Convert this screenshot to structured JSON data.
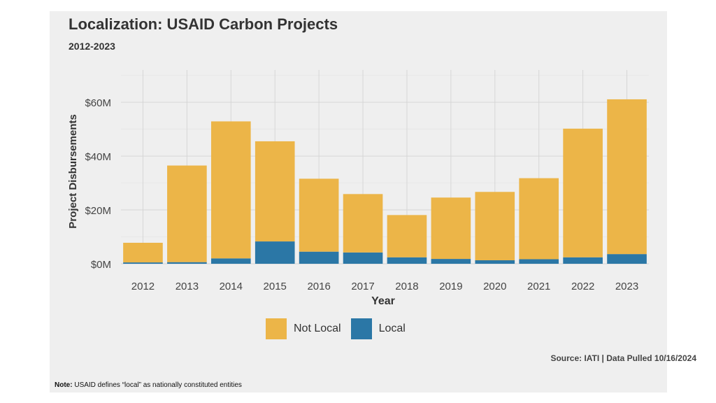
{
  "chart_data": {
    "type": "bar",
    "stacked": true,
    "title": "Localization: USAID Carbon Projects",
    "subtitle": "2012-2023",
    "xlabel": "Year",
    "ylabel": "Project Disbursements",
    "categories": [
      "2012",
      "2013",
      "2014",
      "2015",
      "2016",
      "2017",
      "2018",
      "2019",
      "2020",
      "2021",
      "2022",
      "2023"
    ],
    "series": [
      {
        "name": "Local",
        "color": "#2b77a6",
        "values": [
          0.5,
          0.6,
          2.0,
          8.3,
          4.5,
          4.2,
          2.4,
          1.8,
          1.3,
          1.7,
          2.4,
          3.6
        ]
      },
      {
        "name": "Not Local",
        "color": "#ecb548",
        "values": [
          7.3,
          35.9,
          50.9,
          37.2,
          27.1,
          21.7,
          15.7,
          22.8,
          25.4,
          30.1,
          47.8,
          57.5
        ]
      }
    ],
    "ylim": [
      0,
      72
    ],
    "yticks": [
      0,
      20,
      40,
      60
    ],
    "ytick_labels": [
      "$0M",
      "$20M",
      "$40M",
      "$60M"
    ],
    "grid": true,
    "legend": {
      "position": "bottom",
      "order": [
        "Not Local",
        "Local"
      ]
    }
  },
  "source": "Source: IATI | Data Pulled 10/16/2024",
  "note": {
    "label": "Note:",
    "text": " USAID defines “local” as nationally constituted entities"
  }
}
